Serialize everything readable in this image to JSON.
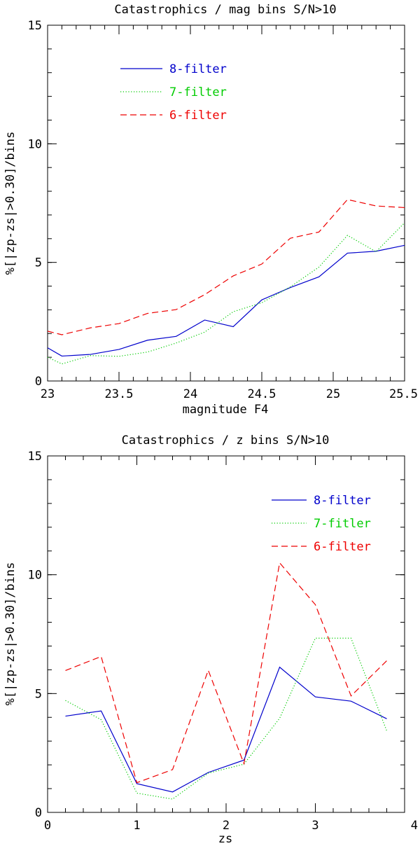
{
  "chart_data": [
    {
      "type": "line",
      "title": "Catastrophics / mag bins  S/N>10",
      "xlabel": "magnitude F4",
      "ylabel": "%[|zp-zs|>0.30]/bins",
      "xlim": [
        23,
        25.5
      ],
      "ylim": [
        0,
        15
      ],
      "x_ticks": [
        23,
        23.5,
        24,
        24.5,
        25,
        25.5
      ],
      "x_tick_labels": [
        "23",
        "23.5",
        "24",
        "24.5",
        "25",
        "25.5"
      ],
      "x_minor_step": 0.1,
      "y_ticks": [
        0,
        5,
        10,
        15
      ],
      "y_tick_labels": [
        "0",
        "5",
        "10",
        "15"
      ],
      "y_minor_step": 1,
      "legend": "top-left",
      "series": [
        {
          "name": "8-filter",
          "color": "#0000cc",
          "dash": "solid",
          "x": [
            23.0,
            23.1,
            23.3,
            23.5,
            23.7,
            23.9,
            24.1,
            24.3,
            24.5,
            24.7,
            24.9,
            25.1,
            25.3,
            25.5
          ],
          "y": [
            1.4,
            1.05,
            1.12,
            1.33,
            1.72,
            1.88,
            2.57,
            2.29,
            3.42,
            3.94,
            4.39,
            5.39,
            5.47,
            5.72
          ]
        },
        {
          "name": "7-filter",
          "color": "#00cc00",
          "dash": "dotted",
          "x": [
            23.0,
            23.1,
            23.3,
            23.5,
            23.7,
            23.9,
            24.1,
            24.3,
            24.5,
            24.7,
            24.9,
            25.1,
            25.3,
            25.5
          ],
          "y": [
            1.0,
            0.72,
            1.07,
            1.04,
            1.22,
            1.6,
            2.06,
            2.92,
            3.3,
            3.97,
            4.8,
            6.14,
            5.45,
            6.67
          ]
        },
        {
          "name": "6-filter",
          "color": "#ee0000",
          "dash": "dashed",
          "x": [
            23.0,
            23.1,
            23.3,
            23.5,
            23.7,
            23.9,
            24.1,
            24.3,
            24.5,
            24.7,
            24.9,
            25.1,
            25.3,
            25.5
          ],
          "y": [
            2.1,
            1.95,
            2.24,
            2.42,
            2.85,
            3.01,
            3.64,
            4.43,
            4.93,
            6.02,
            6.28,
            7.65,
            7.38,
            7.31
          ]
        }
      ]
    },
    {
      "type": "line",
      "title": "Catastrophics / z bins   S/N>10",
      "xlabel": "zs",
      "ylabel": "%[|zp-zs|>0.30]/bins",
      "xlim": [
        0,
        4
      ],
      "ylim": [
        0,
        15
      ],
      "x_ticks": [
        0,
        1,
        2,
        3,
        4
      ],
      "x_tick_labels": [
        "0",
        "1",
        "2",
        "3",
        "4"
      ],
      "x_minor_step": 0.2,
      "y_ticks": [
        0,
        5,
        10,
        15
      ],
      "y_tick_labels": [
        "0",
        "5",
        "10",
        "15"
      ],
      "y_minor_step": 1,
      "legend": "top-right",
      "series": [
        {
          "name": "8-filter",
          "color": "#0000cc",
          "dash": "solid",
          "x": [
            0.2,
            0.6,
            1.0,
            1.4,
            1.8,
            2.2,
            2.6,
            3.0,
            3.4,
            3.8
          ],
          "y": [
            4.05,
            4.27,
            1.21,
            0.86,
            1.68,
            2.2,
            6.11,
            4.86,
            4.68,
            3.94
          ]
        },
        {
          "name": "7-fitler",
          "color": "#00cc00",
          "dash": "dotted",
          "x": [
            0.2,
            0.6,
            1.0,
            1.4,
            1.8,
            2.2,
            2.6,
            3.0,
            3.4,
            3.8
          ],
          "y": [
            4.71,
            3.9,
            0.81,
            0.56,
            1.65,
            2.03,
            3.96,
            7.33,
            7.33,
            3.43
          ]
        },
        {
          "name": "6-filter",
          "color": "#ee0000",
          "dash": "dashed",
          "x": [
            0.2,
            0.6,
            1.0,
            1.4,
            1.8,
            2.2,
            2.6,
            3.0,
            3.4,
            3.8
          ],
          "y": [
            5.97,
            6.56,
            1.25,
            1.8,
            5.98,
            2.05,
            10.5,
            8.74,
            4.9,
            6.38
          ]
        }
      ]
    }
  ]
}
